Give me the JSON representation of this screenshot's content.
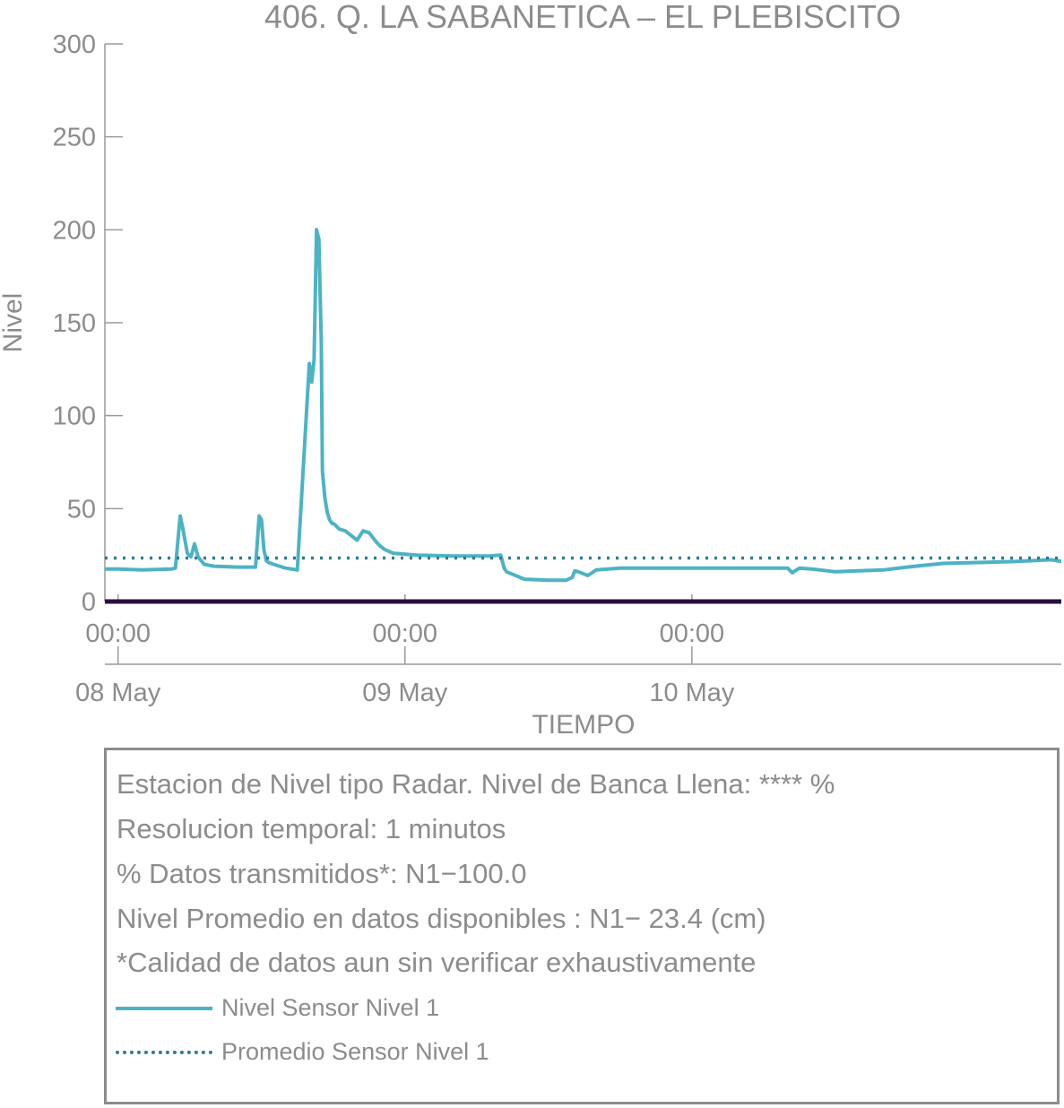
{
  "chart_data": {
    "type": "line",
    "title": "406. Q. LA SABANETICA – EL PLEBISCITO",
    "xlabel": "TIEMPO",
    "ylabel": "Nivel",
    "ylim": [
      0,
      300
    ],
    "yticks": [
      0,
      50,
      100,
      150,
      200,
      250,
      300
    ],
    "xlim_hours": [
      -1.1,
      78.9
    ],
    "x_axis_time_origin": "08 May 00:00",
    "xticks": [
      {
        "hour": 0,
        "time": "00:00",
        "date": "08 May"
      },
      {
        "hour": 24,
        "time": "00:00",
        "date": "09 May"
      },
      {
        "hour": 48,
        "time": "00:00",
        "date": "10 May"
      }
    ],
    "grid": false,
    "series": [
      {
        "name": "Nivel Sensor Nivel 1",
        "color": "#4db3c4",
        "style": "solid",
        "x_hours": [
          -1.5,
          0,
          2,
          4.5,
          4.8,
          5.2,
          5.4,
          5.8,
          6.1,
          6.4,
          6.7,
          7.2,
          8,
          10,
          11.5,
          11.8,
          12,
          12.2,
          12.4,
          12.6,
          13,
          14,
          15,
          16,
          16.2,
          16.4,
          16.6,
          16.8,
          17,
          17.1,
          17.3,
          17.5,
          17.7,
          17.9,
          18,
          18.2,
          18.5,
          19,
          20,
          20.5,
          21,
          21.6,
          21.9,
          22.3,
          23,
          25,
          28,
          31,
          32,
          32.3,
          32.5,
          34,
          36,
          37.5,
          38,
          38.2,
          38.5,
          39.3,
          40,
          41,
          42,
          46,
          50,
          55,
          56,
          56.4,
          57,
          58,
          60,
          62,
          64,
          66,
          69,
          72,
          75,
          78,
          79
        ],
        "values": [
          17.5,
          17.5,
          17,
          17.5,
          18,
          46,
          40,
          26,
          24,
          31,
          24,
          20,
          19,
          18.5,
          18.5,
          46,
          44,
          28,
          22,
          21,
          20,
          18,
          17,
          128,
          118,
          130,
          200,
          195,
          140,
          70,
          56,
          48,
          44,
          42,
          42,
          41,
          39,
          38,
          33,
          38,
          37,
          32,
          30,
          28,
          26,
          25,
          24.5,
          24.5,
          25,
          18,
          16,
          12,
          11.5,
          11.5,
          13,
          16.5,
          16,
          14,
          17,
          17.5,
          18,
          18,
          18,
          18,
          18,
          15.5,
          18,
          17.5,
          16,
          16.5,
          17,
          18.5,
          20.5,
          21,
          21.5,
          22.5,
          21.5
        ]
      },
      {
        "name": "Promedio Sensor Nivel 1",
        "color": "#2e7b91",
        "style": "dotted",
        "x_hours": [
          -1.1,
          78.9
        ],
        "values": [
          23.4,
          23.4
        ]
      }
    ],
    "zero_line_color": "#2a0f3c"
  },
  "info_box": {
    "lines": [
      "Estacion de Nivel tipo Radar. Nivel de Banca Llena: **** %",
      "Resolucion temporal: 1 minutos",
      "% Datos transmitidos*: N1−100.0",
      "Nivel Promedio en datos disponibles : N1− 23.4 (cm)",
      "*Calidad de datos aun sin verificar exhaustivamente"
    ],
    "legend": [
      {
        "label": "Nivel Sensor Nivel 1",
        "style": "solid",
        "color": "#4db3c4"
      },
      {
        "label": "Promedio Sensor Nivel 1",
        "style": "dotted",
        "color": "#2e7b91"
      }
    ]
  }
}
